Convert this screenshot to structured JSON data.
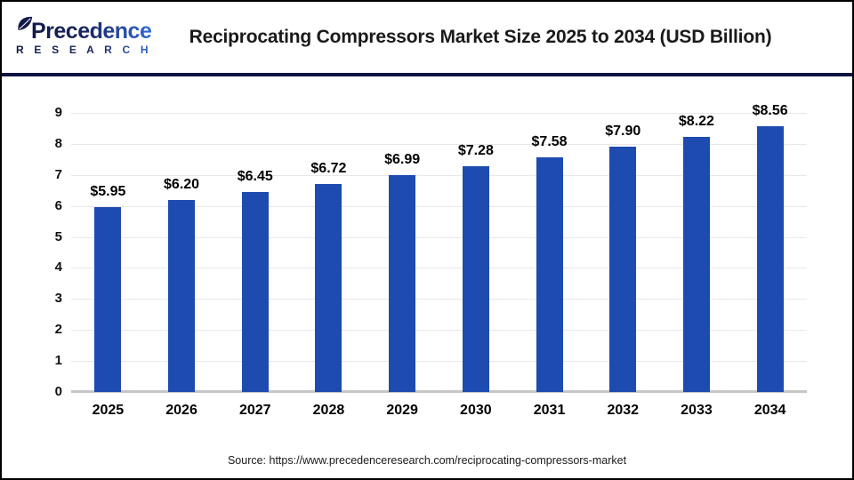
{
  "header": {
    "logo": {
      "name": "Precedence",
      "subtitle": "R E S E A R C H"
    },
    "title": "Reciprocating Compressors Market Size 2025 to 2034 (USD Billion)"
  },
  "footer": {
    "source": "Source: https://www.precedenceresearch.com/reciprocating-compressors-market"
  },
  "colors": {
    "bar": "#1E4BB0",
    "header_rule": "#0E1440",
    "gridline": "#E8E8E8",
    "axis_line": "#C6C6C6",
    "logo_dark": "#121A4A",
    "logo_light": "#2F6AD4",
    "title_text": "#1A1A1A"
  },
  "chart_data": {
    "type": "bar",
    "title": "Reciprocating Compressors Market Size 2025 to 2034 (USD Billion)",
    "unit": "USD Billion",
    "categories": [
      "2025",
      "2026",
      "2027",
      "2028",
      "2029",
      "2030",
      "2031",
      "2032",
      "2033",
      "2034"
    ],
    "values": [
      5.95,
      6.2,
      6.45,
      6.72,
      6.99,
      7.28,
      7.58,
      7.9,
      8.22,
      8.56
    ],
    "value_labels": [
      "$5.95",
      "$6.20",
      "$6.45",
      "$6.72",
      "$6.99",
      "$7.28",
      "$7.58",
      "$7.90",
      "$8.22",
      "$8.56"
    ],
    "xlabel": "",
    "ylabel": "",
    "ylim": [
      0,
      9
    ],
    "yticks": [
      0,
      1,
      2,
      3,
      4,
      5,
      6,
      7,
      8,
      9
    ],
    "grid": true,
    "legend": false
  }
}
